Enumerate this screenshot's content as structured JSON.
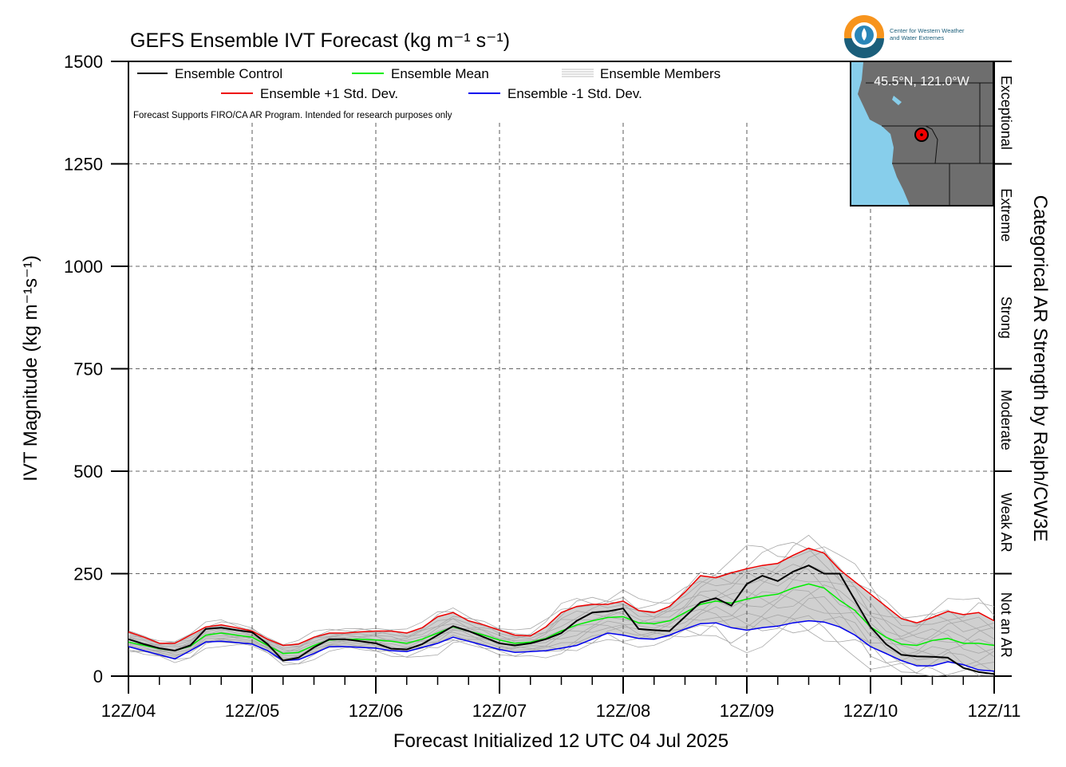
{
  "chart_data": {
    "type": "line",
    "title": "GEFS Ensemble IVT Forecast (kg m⁻¹ s⁻¹)",
    "ylabel": "IVT Magnitude (kg m⁻¹s⁻¹)",
    "xlabel": "Forecast Initialized 12 UTC 04 Jul 2025",
    "right_label": "Categorical AR Strength by Ralph/CW3E",
    "note": "Forecast Supports FIRO/CA AR Program. Intended for research purposes only",
    "ylim": [
      0,
      1500
    ],
    "yticks": [
      0,
      250,
      500,
      750,
      1000,
      1250,
      1500
    ],
    "xlim": [
      0,
      7
    ],
    "xticks": [
      "12Z/04",
      "12Z/05",
      "12Z/06",
      "12Z/07",
      "12Z/08",
      "12Z/09",
      "12Z/10",
      "12Z/11"
    ],
    "grid": true,
    "legend_position": "top-left",
    "categories": [
      {
        "name": "Not an AR",
        "range": [
          0,
          250
        ]
      },
      {
        "name": "Weak AR",
        "range": [
          250,
          500
        ]
      },
      {
        "name": "Moderate",
        "range": [
          500,
          750
        ]
      },
      {
        "name": "Strong",
        "range": [
          750,
          1000
        ]
      },
      {
        "name": "Extreme",
        "range": [
          1000,
          1250
        ]
      },
      {
        "name": "Exceptional",
        "range": [
          1250,
          1500
        ]
      }
    ],
    "x": [
      0,
      0.125,
      0.25,
      0.375,
      0.5,
      0.625,
      0.75,
      0.875,
      1,
      1.125,
      1.25,
      1.375,
      1.5,
      1.625,
      1.75,
      1.875,
      2,
      2.125,
      2.25,
      2.375,
      2.5,
      2.625,
      2.75,
      2.875,
      3,
      3.125,
      3.25,
      3.375,
      3.5,
      3.625,
      3.75,
      3.875,
      4,
      4.125,
      4.25,
      4.375,
      4.5,
      4.625,
      4.75,
      4.875,
      5,
      5.125,
      5.25,
      5.375,
      5.5,
      5.625,
      5.75,
      5.875,
      6,
      6.125,
      6.25,
      6.375,
      6.5,
      6.625,
      6.75,
      6.875,
      7
    ],
    "series": [
      {
        "name": "Ensemble Control",
        "color": "#000000",
        "values": [
          90,
          78,
          68,
          62,
          75,
          115,
          118,
          112,
          107,
          78,
          38,
          45,
          70,
          90,
          90,
          85,
          80,
          67,
          65,
          78,
          100,
          122,
          110,
          95,
          80,
          75,
          80,
          90,
          105,
          135,
          155,
          158,
          165,
          115,
          112,
          110,
          145,
          180,
          190,
          172,
          225,
          245,
          232,
          255,
          270,
          250,
          250,
          185,
          120,
          78,
          52,
          48,
          47,
          45,
          20,
          10,
          5
        ]
      },
      {
        "name": "Ensemble Mean",
        "color": "#00ee00",
        "values": [
          83,
          75,
          67,
          62,
          73,
          100,
          105,
          100,
          95,
          75,
          55,
          58,
          75,
          88,
          90,
          90,
          88,
          85,
          80,
          90,
          105,
          120,
          110,
          100,
          88,
          80,
          83,
          92,
          110,
          125,
          135,
          143,
          145,
          130,
          128,
          135,
          155,
          175,
          183,
          178,
          188,
          195,
          200,
          215,
          225,
          215,
          185,
          160,
          120,
          95,
          78,
          75,
          87,
          92,
          80,
          80,
          75
        ]
      },
      {
        "name": "Ensemble +1 Std. Dev.",
        "color": "#ee0000",
        "values": [
          108,
          95,
          80,
          80,
          100,
          120,
          125,
          118,
          110,
          90,
          75,
          78,
          95,
          105,
          105,
          108,
          110,
          110,
          105,
          118,
          145,
          155,
          135,
          125,
          112,
          100,
          98,
          120,
          155,
          170,
          175,
          175,
          183,
          160,
          155,
          170,
          205,
          245,
          240,
          252,
          262,
          270,
          275,
          295,
          312,
          300,
          260,
          230,
          200,
          170,
          140,
          130,
          143,
          158,
          150,
          155,
          135
        ]
      },
      {
        "name": "Ensemble -1 Std. Dev.",
        "color": "#0000ee",
        "values": [
          72,
          62,
          52,
          42,
          62,
          83,
          85,
          82,
          78,
          62,
          38,
          40,
          55,
          72,
          72,
          70,
          68,
          62,
          60,
          70,
          80,
          95,
          85,
          75,
          65,
          58,
          60,
          62,
          68,
          75,
          90,
          105,
          100,
          92,
          90,
          100,
          115,
          128,
          130,
          118,
          112,
          118,
          122,
          130,
          135,
          132,
          120,
          100,
          72,
          55,
          38,
          25,
          25,
          35,
          28,
          15,
          12
        ]
      }
    ],
    "members_label": "Ensemble Members",
    "map_inset_label": "45.5°N, 121.0°W",
    "logo_text": [
      "Center for Western Weather",
      "and Water Extremes"
    ]
  }
}
